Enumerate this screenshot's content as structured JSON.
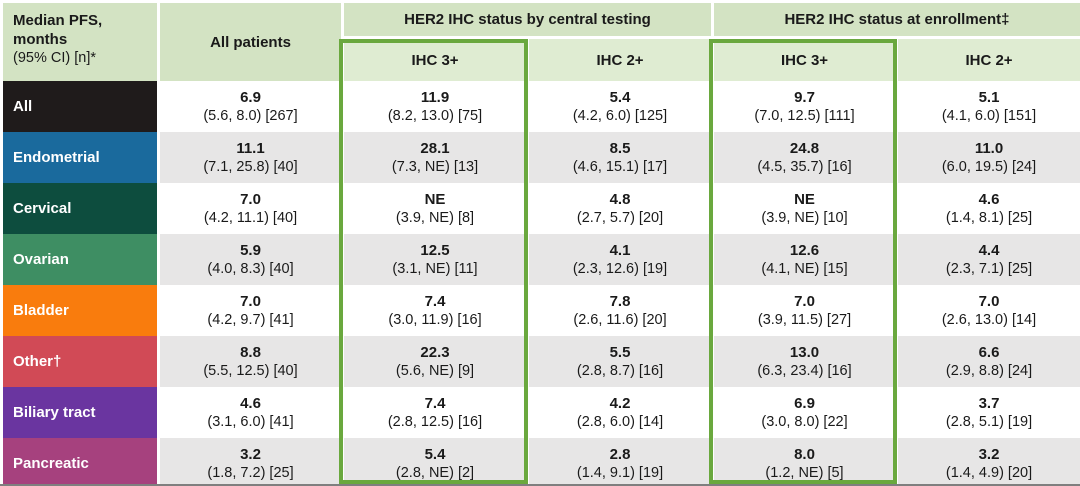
{
  "header": {
    "title": "Median PFS,\nmonths",
    "subtitle": "(95% CI) [n]*",
    "all_patients": "All patients",
    "central_group": "HER2 IHC status by central testing",
    "enrollment_group": "HER2 IHC status at enrollment‡",
    "central_ihc3": "IHC 3+",
    "central_ihc2": "IHC 2+",
    "enroll_ihc3": "IHC 3+",
    "enroll_ihc2": "IHC 2+"
  },
  "palette": {
    "header_fill": "#d3e3c3",
    "subheader_fill": "#dfecd2",
    "alt_row_fill": "#e7e6e6",
    "highlight": "#6aa83e",
    "bottom_rule": "#7f7f7f"
  },
  "chart_data": {
    "type": "table",
    "title": "Median PFS, months (95% CI) [n]*",
    "column_groups": [
      "All patients",
      "HER2 IHC status by central testing",
      "HER2 IHC status at enrollment‡"
    ],
    "columns": [
      "All patients",
      "Central testing IHC 3+",
      "Central testing IHC 2+",
      "Enrollment IHC 3+",
      "Enrollment IHC 2+"
    ],
    "highlighted_columns": [
      "Central testing IHC 3+",
      "Enrollment IHC 3+"
    ],
    "rows": [
      {
        "label": "All",
        "color": "#1f1b1b",
        "cells": [
          {
            "median": "6.9",
            "ci": "(5.6, 8.0) [267]"
          },
          {
            "median": "11.9",
            "ci": "(8.2, 13.0) [75]"
          },
          {
            "median": "5.4",
            "ci": "(4.2, 6.0) [125]"
          },
          {
            "median": "9.7",
            "ci": "(7.0, 12.5) [111]"
          },
          {
            "median": "5.1",
            "ci": "(4.1, 6.0) [151]"
          }
        ]
      },
      {
        "label": "Endometrial",
        "color": "#1a6a9d",
        "cells": [
          {
            "median": "11.1",
            "ci": "(7.1, 25.8) [40]"
          },
          {
            "median": "28.1",
            "ci": "(7.3, NE) [13]"
          },
          {
            "median": "8.5",
            "ci": "(4.6, 15.1) [17]"
          },
          {
            "median": "24.8",
            "ci": "(4.5, 35.7) [16]"
          },
          {
            "median": "11.0",
            "ci": "(6.0, 19.5) [24]"
          }
        ]
      },
      {
        "label": "Cervical",
        "color": "#0d4d3e",
        "cells": [
          {
            "median": "7.0",
            "ci": "(4.2, 11.1) [40]"
          },
          {
            "median": "NE",
            "ci": "(3.9, NE) [8]"
          },
          {
            "median": "4.8",
            "ci": "(2.7, 5.7) [20]"
          },
          {
            "median": "NE",
            "ci": "(3.9, NE) [10]"
          },
          {
            "median": "4.6",
            "ci": "(1.4, 8.1) [25]"
          }
        ]
      },
      {
        "label": "Ovarian",
        "color": "#3e8e63",
        "cells": [
          {
            "median": "5.9",
            "ci": "(4.0, 8.3) [40]"
          },
          {
            "median": "12.5",
            "ci": "(3.1, NE) [11]"
          },
          {
            "median": "4.1",
            "ci": "(2.3, 12.6) [19]"
          },
          {
            "median": "12.6",
            "ci": "(4.1, NE) [15]"
          },
          {
            "median": "4.4",
            "ci": "(2.3, 7.1) [25]"
          }
        ]
      },
      {
        "label": "Bladder",
        "color": "#f97c0d",
        "cells": [
          {
            "median": "7.0",
            "ci": "(4.2, 9.7) [41]"
          },
          {
            "median": "7.4",
            "ci": "(3.0, 11.9) [16]"
          },
          {
            "median": "7.8",
            "ci": "(2.6, 11.6) [20]"
          },
          {
            "median": "7.0",
            "ci": "(3.9, 11.5) [27]"
          },
          {
            "median": "7.0",
            "ci": "(2.6, 13.0) [14]"
          }
        ]
      },
      {
        "label": "Other†",
        "color": "#d14a56",
        "cells": [
          {
            "median": "8.8",
            "ci": "(5.5, 12.5) [40]"
          },
          {
            "median": "22.3",
            "ci": "(5.6, NE) [9]"
          },
          {
            "median": "5.5",
            "ci": "(2.8, 8.7) [16]"
          },
          {
            "median": "13.0",
            "ci": "(6.3, 23.4) [16]"
          },
          {
            "median": "6.6",
            "ci": "(2.9, 8.8) [24]"
          }
        ]
      },
      {
        "label": "Biliary tract",
        "color": "#6a35a0",
        "cells": [
          {
            "median": "4.6",
            "ci": "(3.1, 6.0) [41]"
          },
          {
            "median": "7.4",
            "ci": "(2.8, 12.5) [16]"
          },
          {
            "median": "4.2",
            "ci": "(2.8, 6.0) [14]"
          },
          {
            "median": "6.9",
            "ci": "(3.0, 8.0) [22]"
          },
          {
            "median": "3.7",
            "ci": "(2.8, 5.1) [19]"
          }
        ]
      },
      {
        "label": "Pancreatic",
        "color": "#a6417e",
        "cells": [
          {
            "median": "3.2",
            "ci": "(1.8, 7.2) [25]"
          },
          {
            "median": "5.4",
            "ci": "(2.8, NE) [2]"
          },
          {
            "median": "2.8",
            "ci": "(1.4, 9.1) [19]"
          },
          {
            "median": "8.0",
            "ci": "(1.2, NE) [5]"
          },
          {
            "median": "3.2",
            "ci": "(1.4, 4.9) [20]"
          }
        ]
      }
    ]
  }
}
